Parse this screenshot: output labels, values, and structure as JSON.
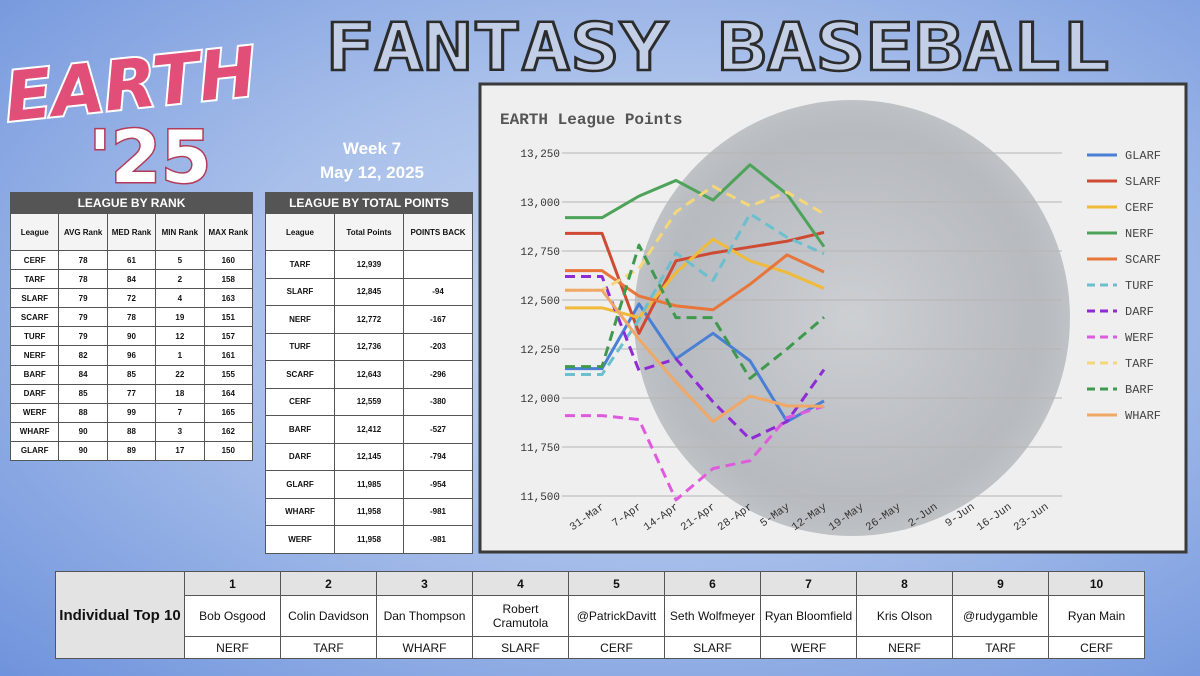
{
  "header": {
    "logo_line1": "EARTH",
    "logo_line2": "'25",
    "title": "FANTASY BASEBALL",
    "week": "Week 7",
    "date": "May 12, 2025"
  },
  "rank_table": {
    "title": "LEAGUE BY RANK",
    "columns": [
      "League",
      "AVG Rank",
      "MED Rank",
      "MIN Rank",
      "MAX Rank"
    ],
    "rows": [
      [
        "CERF",
        78,
        61,
        5,
        160
      ],
      [
        "TARF",
        78,
        84,
        2,
        158
      ],
      [
        "SLARF",
        79,
        72,
        4,
        163
      ],
      [
        "SCARF",
        79,
        78,
        19,
        151
      ],
      [
        "TURF",
        79,
        90,
        12,
        157
      ],
      [
        "NERF",
        82,
        96,
        1,
        161
      ],
      [
        "BARF",
        84,
        85,
        22,
        155
      ],
      [
        "DARF",
        85,
        77,
        18,
        164
      ],
      [
        "WERF",
        88,
        99,
        7,
        165
      ],
      [
        "WHARF",
        90,
        88,
        3,
        162
      ],
      [
        "GLARF",
        90,
        89,
        17,
        150
      ]
    ]
  },
  "points_table": {
    "title": "LEAGUE BY TOTAL POINTS",
    "columns": [
      "League",
      "Total Points",
      "POINTS BACK"
    ],
    "rows": [
      [
        "TARF",
        "12,939",
        null
      ],
      [
        "SLARF",
        "12,845",
        "-94"
      ],
      [
        "NERF",
        "12,772",
        "-167"
      ],
      [
        "TURF",
        "12,736",
        "-203"
      ],
      [
        "SCARF",
        "12,643",
        "-296"
      ],
      [
        "CERF",
        "12,559",
        "-380"
      ],
      [
        "BARF",
        "12,412",
        "-527"
      ],
      [
        "DARF",
        "12,145",
        "-794"
      ],
      [
        "GLARF",
        "11,985",
        "-954"
      ],
      [
        "WHARF",
        "11,958",
        "-981"
      ],
      [
        "WERF",
        "11,958",
        "-981"
      ]
    ]
  },
  "top10": {
    "title": "Individual Top 10",
    "ranks": [
      1,
      2,
      3,
      4,
      5,
      6,
      7,
      8,
      9,
      10
    ],
    "players": [
      "Bob Osgood",
      "Colin Davidson",
      "Dan Thompson",
      "Robert Cramutola",
      "@PatrickDavitt",
      "Seth Wolfmeyer",
      "Ryan Bloomfield",
      "Kris Olson",
      "@rudygamble",
      "Ryan Main"
    ],
    "leagues": [
      "NERF",
      "TARF",
      "WHARF",
      "SLARF",
      "CERF",
      "SLARF",
      "WERF",
      "NERF",
      "TARF",
      "CERF"
    ]
  },
  "chart_data": {
    "type": "line",
    "title": "EARTH League Points",
    "categories": [
      null,
      "31-Mar",
      "7-Apr",
      "14-Apr",
      "21-Apr",
      "28-Apr",
      "5-May",
      "12-May",
      "19-May",
      "26-May",
      "2-Jun",
      "9-Jun",
      "16-Jun",
      "23-Jun"
    ],
    "ylim": [
      11500,
      13250
    ],
    "yticks": [
      {
        "value": 11500,
        "label": "11,500"
      },
      {
        "value": 11750,
        "label": "11,750"
      },
      {
        "value": 12000,
        "label": "12,000"
      },
      {
        "value": 12250,
        "label": "12,250"
      },
      {
        "value": 12500,
        "label": "12,500"
      },
      {
        "value": 12750,
        "label": "12,750"
      },
      {
        "value": 13000,
        "label": "13,000"
      },
      {
        "value": 13250,
        "label": "13,250"
      }
    ],
    "grid": true,
    "legend": "right",
    "series": [
      {
        "name": "GLARF",
        "color": "#4a7fd6",
        "dash": false,
        "values": [
          12150,
          12150,
          12480,
          12200,
          12330,
          12190,
          11880,
          11985,
          null,
          null,
          null,
          null,
          null,
          null
        ]
      },
      {
        "name": "SLARF",
        "color": "#cf4a33",
        "dash": false,
        "values": [
          12840,
          12840,
          12330,
          12700,
          12740,
          12770,
          12800,
          12845,
          null,
          null,
          null,
          null,
          null,
          null
        ]
      },
      {
        "name": "CERF",
        "color": "#f0bb3a",
        "dash": false,
        "values": [
          12460,
          12460,
          12410,
          12640,
          12810,
          12700,
          12640,
          12559,
          null,
          null,
          null,
          null,
          null,
          null
        ]
      },
      {
        "name": "NERF",
        "color": "#4ea35a",
        "dash": false,
        "values": [
          12920,
          12920,
          13030,
          13110,
          13010,
          13190,
          13040,
          12772,
          null,
          null,
          null,
          null,
          null,
          null
        ]
      },
      {
        "name": "SCARF",
        "color": "#e8753a",
        "dash": false,
        "values": [
          12650,
          12650,
          12520,
          12470,
          12450,
          12580,
          12730,
          12643,
          null,
          null,
          null,
          null,
          null,
          null
        ]
      },
      {
        "name": "TURF",
        "color": "#6bbfce",
        "dash": true,
        "values": [
          12120,
          12120,
          12400,
          12740,
          12600,
          12940,
          12820,
          12736,
          null,
          null,
          null,
          null,
          null,
          null
        ]
      },
      {
        "name": "DARF",
        "color": "#8e2bd6",
        "dash": true,
        "values": [
          12620,
          12620,
          12140,
          12200,
          11980,
          11790,
          11880,
          12145,
          null,
          null,
          null,
          null,
          null,
          null
        ]
      },
      {
        "name": "WERF",
        "color": "#e05ae0",
        "dash": true,
        "values": [
          11910,
          11910,
          11890,
          11480,
          11640,
          11680,
          11900,
          11958,
          null,
          null,
          null,
          null,
          null,
          null
        ]
      },
      {
        "name": "TARF",
        "color": "#f5d77a",
        "dash": true,
        "values": [
          12550,
          12550,
          12660,
          12950,
          13080,
          12980,
          13050,
          12939,
          null,
          null,
          null,
          null,
          null,
          null
        ]
      },
      {
        "name": "BARF",
        "color": "#3f9a4d",
        "dash": true,
        "values": [
          12160,
          12160,
          12780,
          12410,
          12410,
          12100,
          12250,
          12412,
          null,
          null,
          null,
          null,
          null,
          null
        ]
      },
      {
        "name": "WHARF",
        "color": "#f0a866",
        "dash": false,
        "values": [
          12550,
          12550,
          12300,
          12080,
          11880,
          12010,
          11960,
          11958,
          null,
          null,
          null,
          null,
          null,
          null
        ]
      }
    ]
  }
}
